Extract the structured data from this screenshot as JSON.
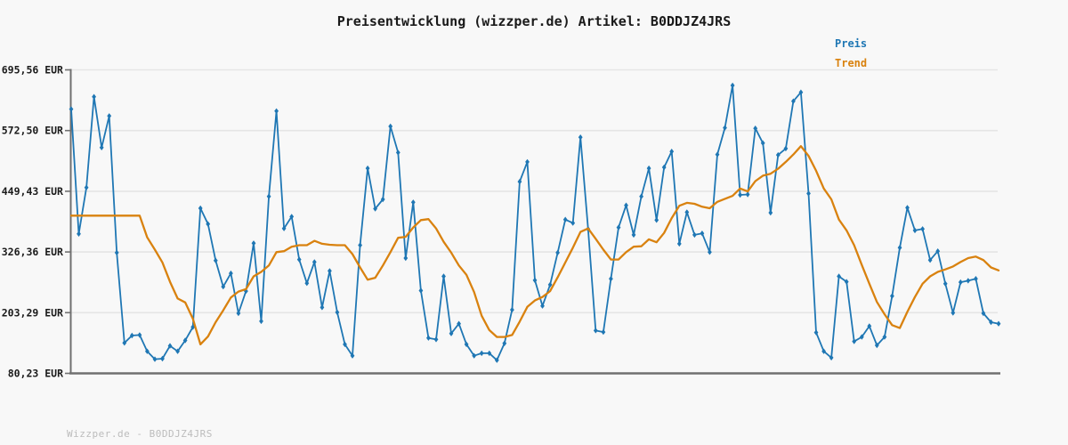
{
  "watermark": {
    "text": "Wizzper.de - B0DDJZ4JRS"
  },
  "chart_data": {
    "type": "line",
    "title": "Preisentwicklung (wizzper.de) Artikel: B0DDJZ4JRS",
    "unit": "EUR",
    "ylim": [
      80.23,
      695.56
    ],
    "grid": true,
    "x_labels_visible": false,
    "legend_position": "top-right",
    "y_ticks": [
      {
        "value": 80.23,
        "label": "80,23 EUR"
      },
      {
        "value": 203.29,
        "label": "203,29 EUR"
      },
      {
        "value": 326.36,
        "label": "326,36 EUR"
      },
      {
        "value": 449.43,
        "label": "449,43 EUR"
      },
      {
        "value": 572.5,
        "label": "572,50 EUR"
      },
      {
        "value": 695.56,
        "label": "695,56 EUR"
      }
    ],
    "series": [
      {
        "name": "Preis",
        "color": "#1f77b4",
        "marker": "diamond",
        "values": [
          616,
          363,
          457,
          641,
          538,
          602,
          325,
          142,
          157,
          158,
          125,
          109,
          110,
          136,
          125,
          147,
          174,
          415,
          383,
          309,
          256,
          283,
          202,
          247,
          344,
          186,
          439,
          612,
          374,
          398,
          311,
          263,
          306,
          214,
          288,
          204,
          139,
          116,
          340,
          496,
          414,
          433,
          581,
          528,
          314,
          427,
          248,
          152,
          149,
          277,
          161,
          181,
          139,
          116,
          121,
          121,
          107,
          141,
          209,
          469,
          509,
          269,
          217,
          260,
          325,
          392,
          385,
          559,
          373,
          167,
          164,
          272,
          376,
          421,
          361,
          439,
          496,
          391,
          498,
          530,
          343,
          407,
          361,
          364,
          326,
          524,
          578,
          664,
          442,
          443,
          577,
          547,
          406,
          523,
          536,
          632,
          650,
          445,
          163,
          125,
          112,
          277,
          266,
          145,
          154,
          176,
          137,
          154,
          237,
          335,
          416,
          370,
          373,
          310,
          328,
          262,
          203,
          265,
          268,
          272,
          202,
          184,
          181
        ]
      },
      {
        "name": "Trend",
        "color": "#d9820f",
        "marker": "none",
        "values": [
          400,
          400,
          400,
          400,
          400,
          400,
          400,
          400,
          400,
          400,
          356,
          331,
          305,
          266,
          232,
          224,
          191,
          139,
          155,
          184,
          208,
          234,
          246,
          251,
          277,
          286,
          299,
          326,
          328,
          337,
          340,
          340,
          349,
          343,
          341,
          340,
          340,
          322,
          295,
          270,
          274,
          299,
          326,
          355,
          357,
          376,
          391,
          393,
          374,
          347,
          325,
          299,
          280,
          245,
          197,
          168,
          154,
          154,
          158,
          185,
          215,
          228,
          235,
          247,
          275,
          305,
          335,
          367,
          374,
          353,
          331,
          311,
          311,
          326,
          337,
          338,
          352,
          346,
          365,
          395,
          420,
          426,
          424,
          418,
          415,
          428,
          434,
          440,
          455,
          449,
          470,
          481,
          485,
          495,
          509,
          524,
          541,
          521,
          491,
          455,
          433,
          392,
          370,
          340,
          300,
          262,
          225,
          200,
          178,
          172,
          205,
          235,
          262,
          277,
          286,
          291,
          297,
          306,
          314,
          317,
          310,
          295,
          289
        ]
      }
    ],
    "colors": {
      "background": "#f8f8f8",
      "gridline": "#e5e5e5",
      "axis": "#707070",
      "tick_label": "#1a1a1a",
      "watermark": "#bcbcbc"
    }
  }
}
